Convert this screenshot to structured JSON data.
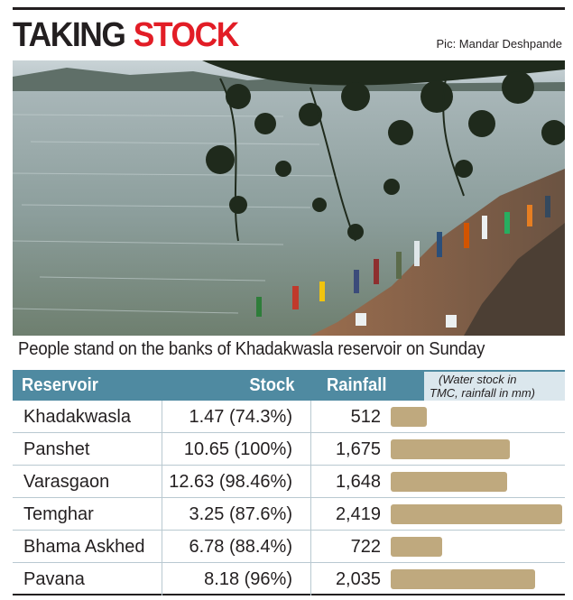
{
  "header": {
    "title_part1": "TAKING",
    "title_part2": "STOCK",
    "title_color": "#231f20",
    "accent_color": "#e21d26",
    "photo_credit": "Pic: Mandar Deshpande"
  },
  "photo": {
    "caption": "People stand on the banks of Khadakwasla reservoir on Sunday"
  },
  "table": {
    "columns": {
      "reservoir": "Reservoir",
      "stock": "Stock",
      "rainfall": "Rainfall"
    },
    "note": {
      "line1": "(Water stock in",
      "line2": "TMC, rainfall in mm)"
    },
    "header_color": "#4f8aa1",
    "bar_color": "#bfa97e",
    "rows": [
      {
        "name": "Khadakwasla",
        "stock": "1.47 (74.3%)",
        "rainfall": "512",
        "rainfall_mm": 512
      },
      {
        "name": "Panshet",
        "stock": "10.65 (100%)",
        "rainfall": "1,675",
        "rainfall_mm": 1675
      },
      {
        "name": "Varasgaon",
        "stock": "12.63 (98.46%)",
        "rainfall": "1,648",
        "rainfall_mm": 1648
      },
      {
        "name": "Temghar",
        "stock": "3.25 (87.6%)",
        "rainfall": "2,419",
        "rainfall_mm": 2419
      },
      {
        "name": "Bhama Askhed",
        "stock": "6.78 (88.4%)",
        "rainfall": "722",
        "rainfall_mm": 722
      },
      {
        "name": "Pavana",
        "stock": "8.18 (96%)",
        "rainfall": "2,035",
        "rainfall_mm": 2035
      }
    ]
  }
}
